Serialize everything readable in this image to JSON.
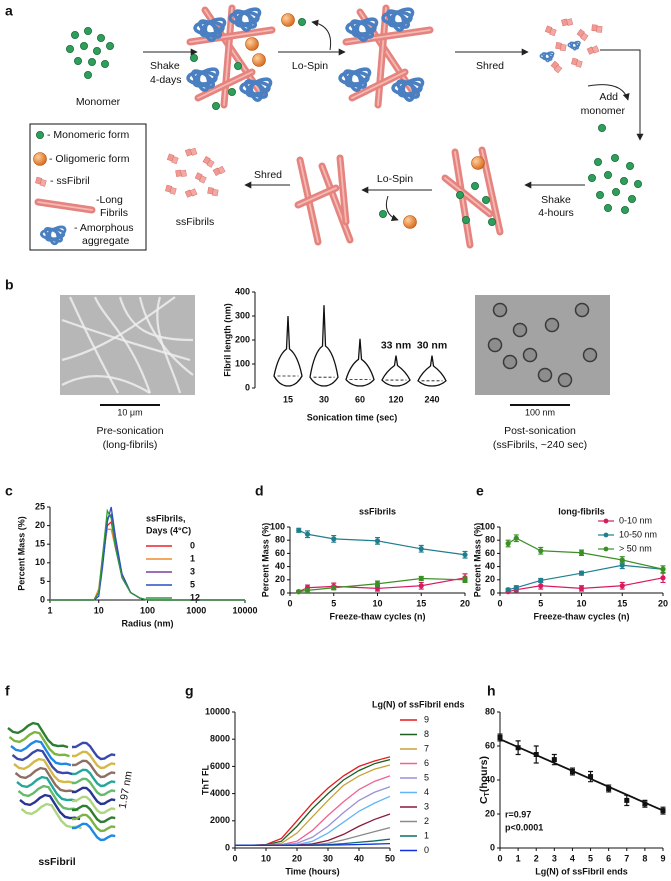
{
  "panel_labels": [
    "a",
    "b",
    "c",
    "d",
    "e",
    "f",
    "g",
    "h"
  ],
  "schematic": {
    "steps": {
      "monomer": "Monomer",
      "shake_days": [
        "Shake",
        "4-days"
      ],
      "lo_spin_1": "Lo-Spin",
      "shred_1": "Shred",
      "add_monomer": [
        "Add",
        "monomer"
      ],
      "shake_hours": [
        "Shake",
        "4-hours"
      ],
      "lo_spin_2": "Lo-Spin",
      "shred_2": "Shred",
      "ssfibrils": "ssFibrils"
    },
    "legend": {
      "monomeric": "- Monomeric form",
      "oligomeric": "- Oligomeric form",
      "ssfibril": "- ssFibril",
      "long_fibrils": [
        "-Long",
        "Fibrils"
      ],
      "amorphous": [
        "- Amorphous",
        "aggregate"
      ]
    }
  },
  "micrographs": {
    "pre": {
      "scale": "10 μm",
      "caption": [
        "Pre-sonication",
        "(long-fibrils)"
      ]
    },
    "post": {
      "scale": "100 nm",
      "caption": [
        "Post-sonication",
        "(ssFibrils, ~240 sec)"
      ]
    }
  },
  "structure": {
    "label": "ssFibril",
    "spacing": "1.97 nm"
  },
  "chart_data": [
    {
      "type": "violin",
      "ylabel": "Fibril length (nm)",
      "xlabel": "Sonication time (sec)",
      "categories": [
        "15",
        "30",
        "60",
        "120",
        "240"
      ],
      "values": [
        50,
        45,
        35,
        33,
        30
      ],
      "value_labels": [
        null,
        null,
        null,
        "33 nm",
        "30 nm"
      ],
      "max": [
        300,
        345,
        205,
        135,
        135
      ],
      "ylim": [
        0,
        400
      ],
      "yticks": [
        0,
        100,
        200,
        300,
        400
      ]
    },
    {
      "type": "line",
      "xscale": "log",
      "xlabel": "Radius (nm)",
      "ylabel": "Percent Mass (%)",
      "legend_title": [
        "ssFibrils,",
        "Days (4°C)"
      ],
      "x": [
        1,
        8,
        10,
        12,
        15,
        18,
        22,
        30,
        45,
        70,
        100,
        10000
      ],
      "series": [
        {
          "name": "0",
          "color": "#e8202a",
          "values": [
            0,
            0,
            2,
            10,
            20,
            21,
            15,
            7,
            2,
            0.5,
            0,
            0
          ]
        },
        {
          "name": "1",
          "color": "#f08a2c",
          "values": [
            0,
            0,
            3,
            12,
            19,
            19,
            14,
            7,
            2,
            0.5,
            0,
            0
          ]
        },
        {
          "name": "3",
          "color": "#7b3fa0",
          "values": [
            0,
            0,
            2,
            11,
            22,
            23,
            15,
            6,
            2,
            0.5,
            0,
            0
          ]
        },
        {
          "name": "5",
          "color": "#2b4fc2",
          "values": [
            0,
            0,
            1,
            9,
            21,
            25,
            17,
            7,
            2,
            0.5,
            0,
            0
          ]
        },
        {
          "name": "12",
          "color": "#2a9a3a",
          "values": [
            0,
            0,
            2,
            12,
            24,
            22,
            14,
            6,
            2,
            0.5,
            0,
            0
          ]
        }
      ],
      "xlim": [
        1,
        10000
      ],
      "xticks": [
        1,
        10,
        100,
        1000,
        10000
      ],
      "ylim": [
        0,
        25
      ],
      "yticks": [
        0,
        5,
        10,
        15,
        20,
        25
      ]
    },
    {
      "type": "line",
      "title": "ssFibrils",
      "xlabel": "Freeze-thaw cycles (n)",
      "ylabel": "Percent Mass (%)",
      "x": [
        1,
        2,
        5,
        10,
        15,
        20
      ],
      "series": [
        {
          "color": "#d81b60",
          "values": [
            2,
            8,
            10,
            7,
            11,
            23
          ],
          "errors": [
            2,
            4,
            5,
            4,
            5,
            6
          ]
        },
        {
          "color": "#1f7f8f",
          "values": [
            95,
            89,
            82,
            79,
            67,
            58
          ],
          "errors": [
            3,
            5,
            5,
            5,
            5,
            5
          ]
        },
        {
          "color": "#3b8f25",
          "values": [
            2,
            4,
            8,
            14,
            22,
            20
          ],
          "errors": [
            1,
            3,
            3,
            4,
            3,
            4
          ]
        }
      ],
      "xlim": [
        0,
        20
      ],
      "xticks": [
        0,
        5,
        10,
        15,
        20
      ],
      "ylim": [
        0,
        100
      ],
      "yticks": [
        0,
        20,
        40,
        60,
        80,
        100
      ]
    },
    {
      "type": "line",
      "title": "long-fibrils",
      "xlabel": "Freeze-thaw cycles (n)",
      "ylabel": "Percent Mass (%)",
      "x": [
        1,
        2,
        5,
        10,
        15,
        20
      ],
      "series": [
        {
          "name": "0-10 nm",
          "color": "#d81b60",
          "values": [
            2,
            5,
            11,
            7,
            11,
            23
          ],
          "errors": [
            2,
            3,
            5,
            4,
            5,
            7
          ]
        },
        {
          "name": "10-50 nm",
          "color": "#1f7f8f",
          "values": [
            5,
            8,
            19,
            30,
            42,
            36
          ],
          "errors": [
            2,
            3,
            3,
            3,
            5,
            5
          ]
        },
        {
          "name": "> 50 nm",
          "color": "#3b8f25",
          "values": [
            75,
            83,
            64,
            61,
            50,
            36
          ],
          "errors": [
            5,
            5,
            5,
            4,
            5,
            5
          ]
        }
      ],
      "xlim": [
        0,
        20
      ],
      "xticks": [
        0,
        5,
        10,
        15,
        20
      ],
      "ylim": [
        0,
        100
      ],
      "yticks": [
        0,
        20,
        40,
        60,
        80,
        100
      ]
    },
    {
      "type": "line",
      "xlabel": "Time (hours)",
      "ylabel": "ThT FL",
      "legend_title": "Lg(N) of ssFibril ends",
      "x": [
        0,
        5,
        10,
        15,
        20,
        25,
        30,
        35,
        40,
        45,
        50
      ],
      "series": [
        {
          "name": "9",
          "color": "#e41a1c",
          "values": [
            200,
            200,
            250,
            700,
            2000,
            3300,
            4400,
            5300,
            6000,
            6400,
            6700
          ]
        },
        {
          "name": "8",
          "color": "#1b5e20",
          "values": [
            200,
            200,
            230,
            500,
            1600,
            2900,
            4000,
            5000,
            5700,
            6200,
            6500
          ]
        },
        {
          "name": "7",
          "color": "#c8a23a",
          "values": [
            200,
            200,
            220,
            350,
            1100,
            2300,
            3500,
            4600,
            5300,
            5800,
            6100
          ]
        },
        {
          "name": "6",
          "color": "#f06292",
          "values": [
            200,
            200,
            210,
            250,
            500,
            1300,
            2400,
            3400,
            4300,
            4900,
            5300
          ]
        },
        {
          "name": "5",
          "color": "#9c8fd6",
          "values": [
            200,
            200,
            200,
            220,
            350,
            800,
            1600,
            2600,
            3500,
            4100,
            4500
          ]
        },
        {
          "name": "4",
          "color": "#64b5f6",
          "values": [
            200,
            200,
            200,
            210,
            250,
            500,
            1100,
            1900,
            2700,
            3300,
            3800
          ]
        },
        {
          "name": "3",
          "color": "#8b1a3a",
          "values": [
            200,
            200,
            200,
            200,
            220,
            300,
            550,
            1000,
            1600,
            2100,
            2500
          ]
        },
        {
          "name": "2",
          "color": "#8a8a8a",
          "values": [
            200,
            200,
            200,
            200,
            200,
            230,
            350,
            600,
            900,
            1200,
            1500
          ]
        },
        {
          "name": "1",
          "color": "#0f6d6d",
          "values": [
            200,
            200,
            200,
            200,
            200,
            210,
            250,
            320,
            420,
            520,
            650
          ]
        },
        {
          "name": "0",
          "color": "#1030e0",
          "values": [
            200,
            200,
            200,
            200,
            200,
            200,
            210,
            230,
            260,
            290,
            320
          ]
        }
      ],
      "xlim": [
        0,
        50
      ],
      "xticks": [
        0,
        10,
        20,
        30,
        40,
        50
      ],
      "ylim": [
        0,
        10000
      ],
      "yticks": [
        0,
        2000,
        4000,
        6000,
        8000,
        10000
      ]
    },
    {
      "type": "scatter",
      "xlabel": "Lg(N) of ssFibril ends",
      "ylabel": "C",
      "ylabel_subscript": "T",
      "ylabel_suffix": "(hours)",
      "color": "#111",
      "x": [
        0,
        1,
        2,
        3,
        4,
        5,
        6,
        7,
        8,
        9
      ],
      "values": [
        65,
        59,
        55,
        52,
        45,
        42,
        35,
        28,
        26,
        22
      ],
      "errors": [
        2,
        4,
        5,
        3,
        2,
        3,
        2,
        3,
        2,
        2
      ],
      "fit": {
        "x": [
          0,
          9
        ],
        "values": [
          64,
          22
        ]
      },
      "annotations": [
        "r=0.97",
        "p<0.0001"
      ],
      "xlim": [
        0,
        9
      ],
      "xticks": [
        0,
        1,
        2,
        3,
        4,
        5,
        6,
        7,
        8,
        9
      ],
      "ylim": [
        0,
        80
      ],
      "yticks": [
        0,
        20,
        40,
        60,
        80
      ]
    }
  ]
}
